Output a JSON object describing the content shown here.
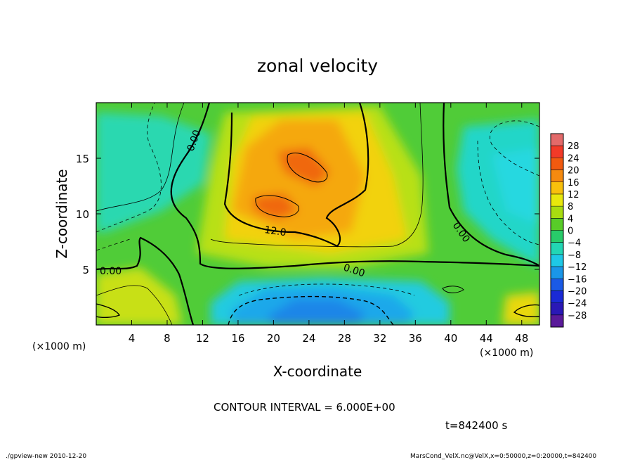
{
  "chart_data": {
    "type": "heatmap",
    "title": "zonal velocity",
    "xlabel": "X-coordinate",
    "ylabel": "Z-coordinate",
    "x_unit": "(×1000 m)",
    "z_unit": "(×1000 m)",
    "xlim": [
      0,
      50
    ],
    "ylim": [
      0,
      20
    ],
    "x_ticks": [
      "4",
      "8",
      "12",
      "16",
      "20",
      "24",
      "28",
      "32",
      "36",
      "40",
      "44",
      "48"
    ],
    "y_ticks": [
      "5",
      "10",
      "15"
    ],
    "colorbar": {
      "labels": [
        "28",
        "24",
        "20",
        "16",
        "12",
        "8",
        "4",
        "0",
        "-4",
        "-8",
        "-12",
        "-16",
        "-20",
        "-24",
        "-28"
      ],
      "levels": [
        28,
        24,
        20,
        16,
        12,
        8,
        4,
        0,
        -4,
        -8,
        -12,
        -16,
        -20,
        -24,
        -28
      ],
      "colors": [
        "#e36a6a",
        "#f23a28",
        "#f15a10",
        "#f58a10",
        "#f8c00c",
        "#e8e80c",
        "#a8dc10",
        "#58cc28",
        "#28cc6a",
        "#22d6b4",
        "#1ec8e6",
        "#1a96e8",
        "#1a5ae6",
        "#1a2ad6",
        "#2a18b6",
        "#5a1a9a"
      ]
    },
    "contour_interval": "CONTOUR INTERVAL =  6.000E+00",
    "contour_labels": [
      "0.00",
      "0.00",
      "12.0",
      "0.00",
      "0.00"
    ],
    "time": "t=842400 s"
  },
  "footer": {
    "left": "./gpview-new  2010-12-20",
    "right": "MarsCond_VelX.nc@VelX,x=0:50000,z=0:20000,t=842400"
  }
}
